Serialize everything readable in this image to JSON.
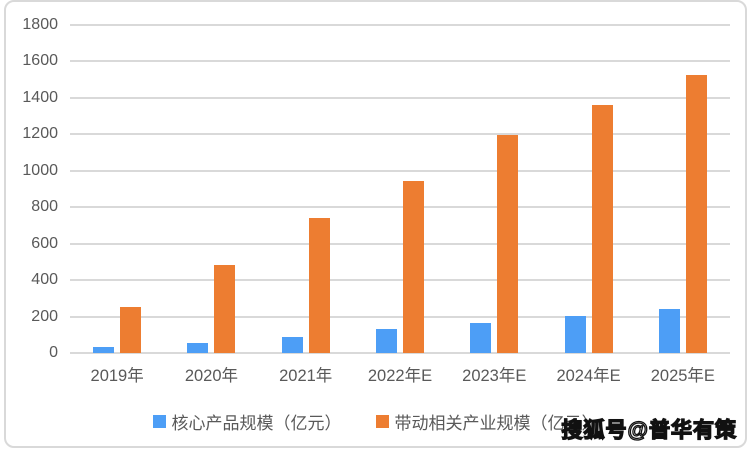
{
  "chart_data": {
    "type": "bar",
    "categories": [
      "2019年",
      "2020年",
      "2021年",
      "2022年E",
      "2023年E",
      "2024年E",
      "2025年E"
    ],
    "series": [
      {
        "name": "核心产品规模（亿元）",
        "color": "#4D9EF6",
        "values": [
          35,
          55,
          90,
          130,
          165,
          205,
          240
        ]
      },
      {
        "name": "带动相关产业规模（亿元）",
        "color": "#ED7D31",
        "values": [
          250,
          485,
          740,
          945,
          1195,
          1360,
          1525
        ]
      }
    ],
    "title": "",
    "xlabel": "",
    "ylabel": "",
    "ylim": [
      0,
      1800
    ],
    "ytick_step": 200,
    "ytick_labels": [
      "0",
      "200",
      "400",
      "600",
      "800",
      "1000",
      "1200",
      "1400",
      "1600",
      "1800"
    ],
    "grid": true,
    "legend_position": "bottom"
  },
  "styles": {
    "gridline_color": "#D9D9D9",
    "axis_text_color": "#595959",
    "frame_border_color": "#D9D9D9",
    "background": "#FFFFFF"
  },
  "watermark": {
    "text": "搜狐号@普华有策"
  }
}
